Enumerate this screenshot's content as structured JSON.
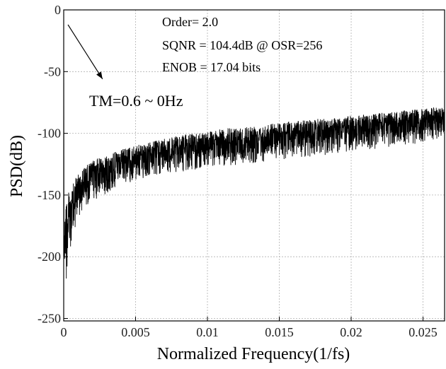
{
  "chart_data": {
    "type": "line",
    "title": "",
    "xlabel": "Normalized Frequency(1/fs)",
    "ylabel": "PSD(dB)",
    "xlim": [
      0,
      0.0265
    ],
    "ylim": [
      -252,
      0
    ],
    "grid": true,
    "x_ticks": [
      0,
      0.005,
      0.01,
      0.015,
      0.02,
      0.025
    ],
    "x_tick_labels": [
      "0",
      "0.005",
      "0.01",
      "0.015",
      "0.02",
      "0.025"
    ],
    "y_ticks": [
      0,
      -50,
      -100,
      -150,
      -200,
      -250
    ],
    "y_tick_labels": [
      "0",
      "-50",
      "-100",
      "-150",
      "-200",
      "-250"
    ],
    "annotations": {
      "order": "Order= 2.0",
      "sqnr": "SQNR = 104.4dB @ OSR=256",
      "enob": "ENOB =  17.04 bits",
      "tone": "TM=0.6 ~ 0Hz"
    },
    "arrow": {
      "from": [
        0.0001,
        -12
      ],
      "to": [
        0.0027,
        -56
      ]
    },
    "series": [
      {
        "color": "#000000",
        "note": "dense noise floor shaped by noise shaping; upper envelope (x, y in data units)",
        "envelope_upper": [
          [
            0,
            -10
          ],
          [
            0.0002,
            -150
          ],
          [
            0.0005,
            -145
          ],
          [
            0.001,
            -132
          ],
          [
            0.002,
            -122
          ],
          [
            0.004,
            -113
          ],
          [
            0.006,
            -107
          ],
          [
            0.008,
            -102
          ],
          [
            0.01,
            -98
          ],
          [
            0.015,
            -91
          ],
          [
            0.02,
            -86
          ],
          [
            0.025,
            -80
          ],
          [
            0.0265,
            -78
          ]
        ],
        "envelope_lower": [
          [
            0.0002,
            -220
          ],
          [
            0.0005,
            -195
          ],
          [
            0.001,
            -168
          ],
          [
            0.002,
            -155
          ],
          [
            0.004,
            -142
          ],
          [
            0.006,
            -135
          ],
          [
            0.008,
            -132
          ],
          [
            0.01,
            -128
          ],
          [
            0.015,
            -122
          ],
          [
            0.02,
            -115
          ],
          [
            0.025,
            -108
          ],
          [
            0.0265,
            -106
          ]
        ]
      }
    ]
  },
  "colors": {
    "line": "#000000",
    "grid": "#b0b0b0",
    "axis": "#000000"
  }
}
